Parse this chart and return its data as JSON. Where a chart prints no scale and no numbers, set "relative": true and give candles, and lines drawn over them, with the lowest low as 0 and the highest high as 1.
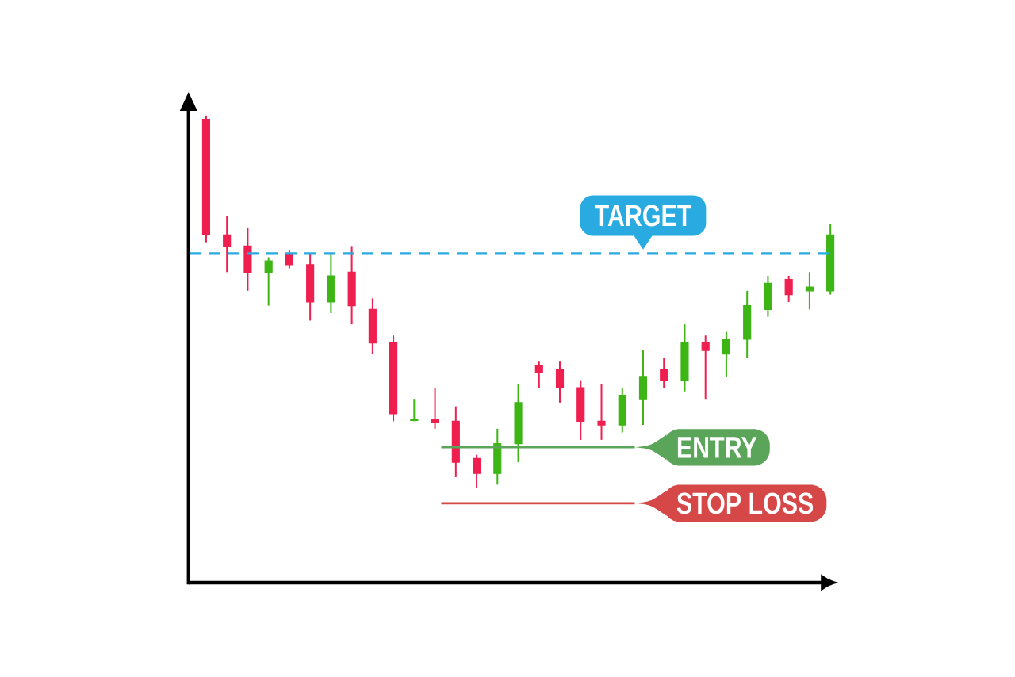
{
  "chart_data": {
    "type": "candlestick",
    "relative": true,
    "categories": [
      null,
      null,
      null,
      null,
      null,
      null,
      null,
      null,
      null,
      null,
      null,
      null,
      null,
      null,
      null,
      null,
      null,
      null,
      null,
      null,
      null,
      null,
      null,
      null,
      null,
      null,
      null,
      null,
      null,
      null,
      null
    ],
    "ohlc": [
      [
        0.99,
        1.0,
        0.66,
        0.68
      ],
      [
        0.68,
        0.73,
        0.58,
        0.65
      ],
      [
        0.65,
        0.7,
        0.53,
        0.58
      ],
      [
        0.58,
        0.62,
        0.49,
        0.61
      ],
      [
        0.63,
        0.64,
        0.59,
        0.6
      ],
      [
        0.6,
        0.63,
        0.45,
        0.5
      ],
      [
        0.5,
        0.63,
        0.47,
        0.57
      ],
      [
        0.58,
        0.65,
        0.44,
        0.49
      ],
      [
        0.48,
        0.51,
        0.36,
        0.39
      ],
      [
        0.39,
        0.41,
        0.18,
        0.2
      ],
      [
        0.182,
        0.24,
        0.18,
        0.185
      ],
      [
        0.185,
        0.27,
        0.16,
        0.178
      ],
      [
        0.18,
        0.22,
        0.03,
        0.07
      ],
      [
        0.08,
        0.09,
        0.0,
        0.04
      ],
      [
        0.04,
        0.16,
        0.01,
        0.12
      ],
      [
        0.12,
        0.28,
        0.07,
        0.23
      ],
      [
        0.33,
        0.34,
        0.27,
        0.31
      ],
      [
        0.32,
        0.34,
        0.23,
        0.27
      ],
      [
        0.27,
        0.29,
        0.13,
        0.18
      ],
      [
        0.18,
        0.28,
        0.13,
        0.17
      ],
      [
        0.17,
        0.27,
        0.15,
        0.25
      ],
      [
        0.24,
        0.37,
        0.17,
        0.3
      ],
      [
        0.32,
        0.35,
        0.27,
        0.29
      ],
      [
        0.29,
        0.44,
        0.26,
        0.39
      ],
      [
        0.39,
        0.41,
        0.24,
        0.37
      ],
      [
        0.36,
        0.42,
        0.3,
        0.4
      ],
      [
        0.4,
        0.53,
        0.35,
        0.49
      ],
      [
        0.48,
        0.57,
        0.46,
        0.55
      ],
      [
        0.56,
        0.57,
        0.5,
        0.52
      ],
      [
        0.53,
        0.58,
        0.48,
        0.54
      ],
      [
        0.53,
        0.71,
        0.52,
        0.68
      ]
    ],
    "ref_lines": [
      {
        "axis": "y",
        "value": 0.63,
        "label": "TARGET",
        "color": "#29aae1",
        "line_style": "dashed"
      },
      {
        "axis": "y",
        "value": 0.11,
        "label": "ENTRY",
        "color": "#5aa55a",
        "line_style": "solid"
      },
      {
        "axis": "y",
        "value": -0.04,
        "label": "STOP LOSS",
        "color": "#d64848",
        "line_style": "solid"
      }
    ]
  }
}
